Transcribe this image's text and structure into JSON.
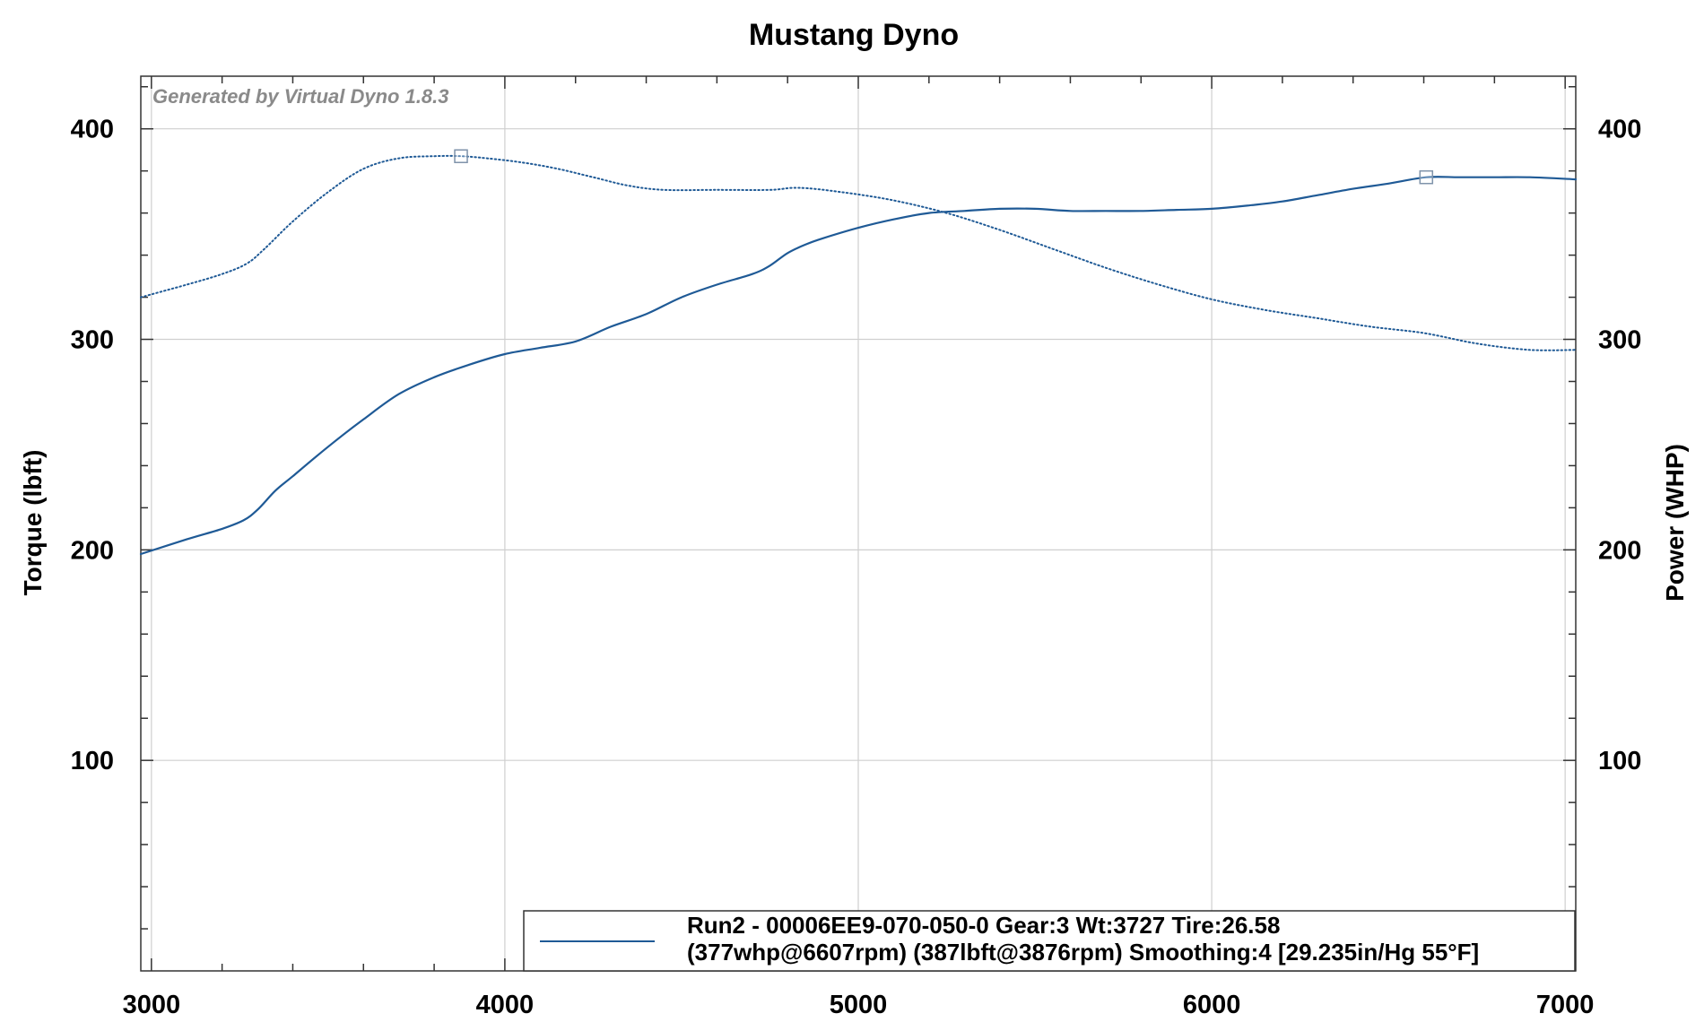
{
  "chart_data": {
    "type": "line",
    "title": "Mustang Dyno",
    "watermark": "Generated by Virtual Dyno 1.8.3",
    "xlabel": "",
    "ylabel": "Torque (lbft)",
    "y2label": "Power (WHP)",
    "xlim": [
      2970,
      7030
    ],
    "ylim": [
      0,
      425
    ],
    "y2lim": [
      0,
      425
    ],
    "x_ticks": [
      "3000",
      "4000",
      "5000",
      "6000",
      "7000"
    ],
    "y_ticks": [
      "100",
      "200",
      "300",
      "400"
    ],
    "y2_ticks": [
      "100",
      "200",
      "300",
      "400"
    ],
    "grid": true,
    "colors": {
      "series": "#1f5a96",
      "grid": "#cfcfcf",
      "axis": "#333333"
    },
    "series": [
      {
        "name": "Power",
        "axis": "right",
        "style": "solid",
        "x": [
          2970,
          3100,
          3200,
          3260,
          3300,
          3350,
          3400,
          3500,
          3600,
          3700,
          3800,
          3900,
          4000,
          4100,
          4200,
          4300,
          4400,
          4500,
          4600,
          4700,
          4750,
          4800,
          4850,
          4900,
          5000,
          5100,
          5200,
          5300,
          5400,
          5500,
          5600,
          5700,
          5800,
          5900,
          6000,
          6100,
          6200,
          6300,
          6400,
          6500,
          6607,
          6700,
          6800,
          6900,
          7030
        ],
        "values": [
          198,
          205,
          210,
          214,
          219,
          228,
          235,
          249,
          262,
          274,
          282,
          288,
          293,
          296,
          299,
          306,
          312,
          320,
          326,
          331,
          335,
          341,
          345,
          348,
          353,
          357,
          360,
          361,
          362,
          362,
          361,
          361,
          361,
          361.5,
          362,
          363.5,
          365.5,
          368.5,
          371.5,
          374,
          377,
          377,
          377,
          377,
          376
        ]
      },
      {
        "name": "Torque",
        "axis": "left",
        "style": "dotted",
        "x": [
          2970,
          3100,
          3200,
          3270,
          3320,
          3400,
          3500,
          3600,
          3700,
          3800,
          3876,
          3950,
          4050,
          4150,
          4250,
          4350,
          4450,
          4600,
          4750,
          4830,
          4950,
          5100,
          5250,
          5400,
          5550,
          5700,
          5850,
          6000,
          6150,
          6300,
          6450,
          6600,
          6750,
          6900,
          7030
        ],
        "values": [
          320,
          326,
          331,
          336,
          343,
          356,
          370,
          381,
          386,
          387,
          387,
          386,
          384,
          381,
          377,
          373,
          371,
          371,
          371,
          372,
          370,
          366,
          360,
          352,
          343,
          334,
          326,
          319,
          314,
          310,
          306,
          303,
          298,
          295,
          295
        ]
      }
    ],
    "markers": [
      {
        "series": "Torque",
        "x": 3876,
        "y": 387
      },
      {
        "series": "Power",
        "x": 6607,
        "y": 377
      }
    ],
    "legend": {
      "placement": "bottom-right",
      "line1": "Run2 - 00006EE9-070-050-0 Gear:3 Wt:3727 Tire:26.58",
      "line2": "(377whp@6607rpm) (387lbft@3876rpm) Smoothing:4 [29.235in/Hg 55°F]"
    }
  }
}
